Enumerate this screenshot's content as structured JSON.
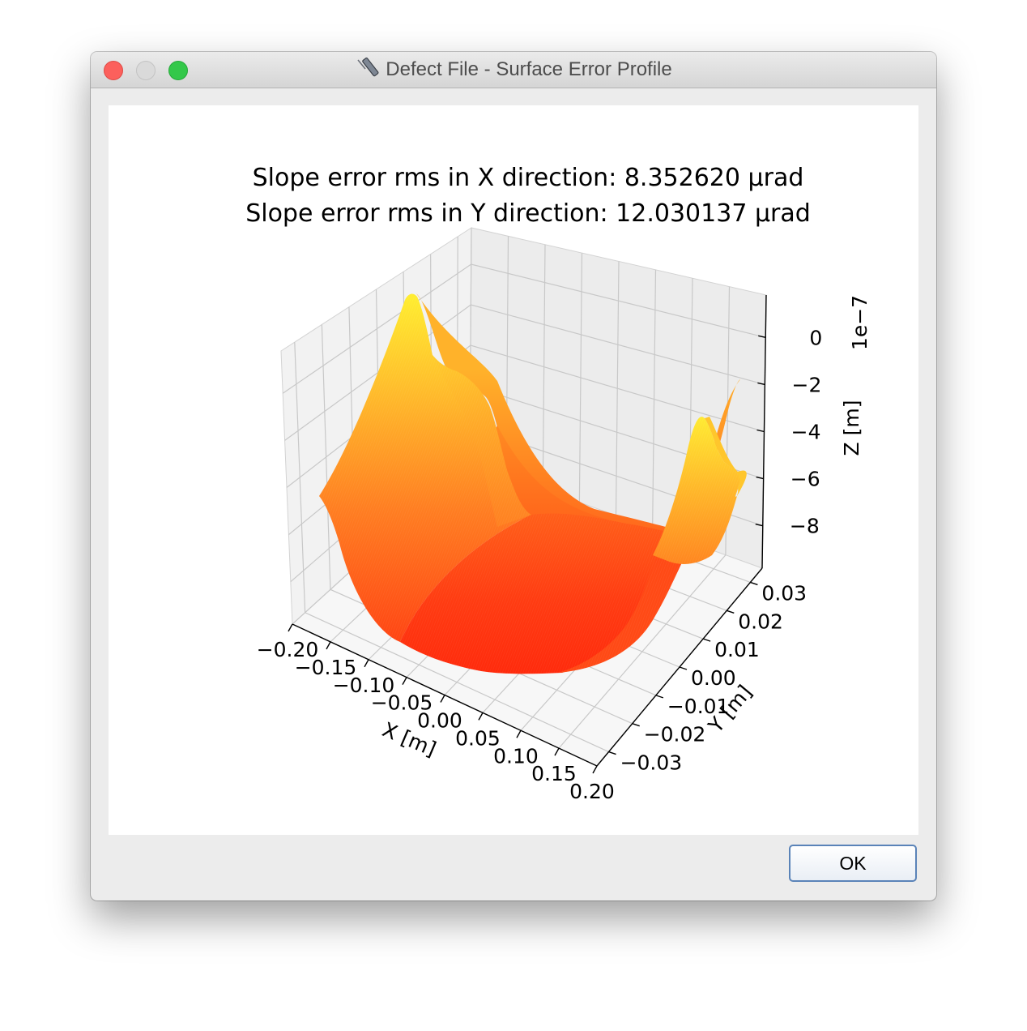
{
  "window": {
    "title": "Defect File - Surface Error Profile",
    "ok_label": "OK"
  },
  "chart_data": {
    "type": "surface3d",
    "title": [
      "Slope error rms in X direction: 8.352620 μrad",
      "Slope error rms in Y direction: 12.030137 μrad"
    ],
    "xlabel": "X [m]",
    "ylabel": "Y [m]",
    "zlabel": "Z [m]",
    "z_offset_label": "1e−7",
    "x_ticks": [
      "−0.20",
      "−0.15",
      "−0.10",
      "−0.05",
      "0.00",
      "0.05",
      "0.10",
      "0.15",
      "0.20"
    ],
    "y_ticks": [
      "−0.03",
      "−0.02",
      "−0.01",
      "0.00",
      "0.01",
      "0.02",
      "0.03"
    ],
    "z_ticks": [
      "0",
      "−2",
      "−4",
      "−6",
      "−8"
    ],
    "xlim": [
      -0.2,
      0.2
    ],
    "ylim": [
      -0.035,
      0.035
    ],
    "zlim": [
      -9.8,
      1.8
    ],
    "z_scale": 1e-07,
    "colormap": [
      "#ff2b00",
      "#ff8a20",
      "#ffff33"
    ],
    "surface_samples": {
      "x": [
        -0.2,
        -0.15,
        -0.1,
        -0.05,
        0.0,
        0.05,
        0.1,
        0.15,
        0.2
      ],
      "y_at_x_min": [
        -0.033,
        -0.015,
        0.0,
        0.015,
        0.033
      ],
      "z_along_x_min_edge": [
        -7.3,
        -0.5,
        1.2,
        -0.6,
        -2.7
      ],
      "z_along_x_max_edge": [
        -8.2,
        -7.5,
        -4.0,
        -0.6,
        0.8,
        -2.2,
        -4.6
      ],
      "z_floor": -9.6
    },
    "grid": true
  }
}
